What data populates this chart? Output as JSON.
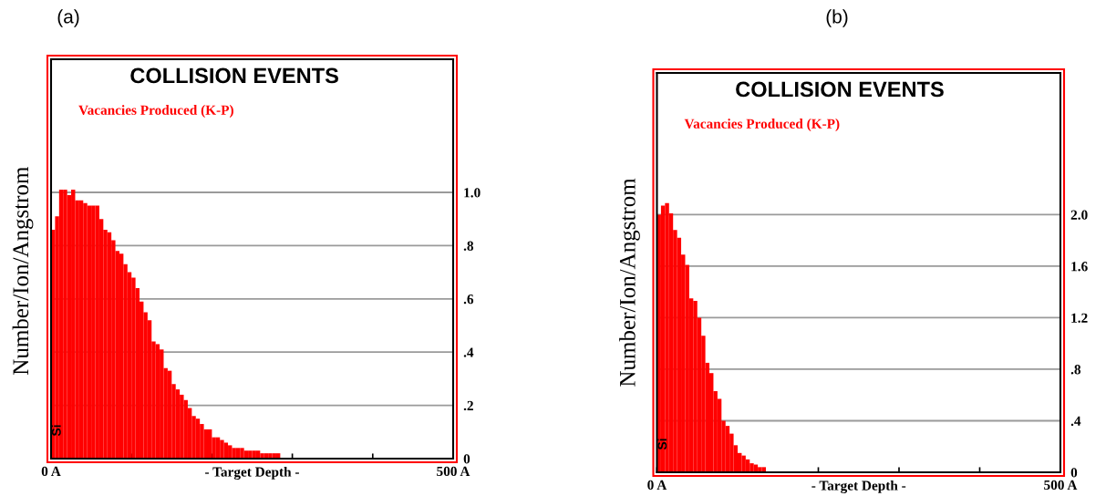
{
  "chart_data": [
    {
      "type": "histogram",
      "title": "COLLISION EVENTS",
      "xlabel": "- Target Depth -",
      "ylabel": "Number/Ion/Angstrom",
      "annotations": [
        "(a)",
        "Si"
      ],
      "bins": [
        0,
        5,
        10,
        15,
        20,
        25,
        30,
        35,
        40,
        45,
        50,
        55,
        60,
        65,
        70,
        75,
        80,
        85,
        90,
        95,
        100,
        105,
        110,
        115,
        120,
        125,
        130,
        135,
        140,
        145,
        150,
        155,
        160,
        165,
        170,
        175,
        180,
        185,
        190,
        195,
        200,
        205,
        210,
        215,
        220,
        225,
        230,
        235,
        240,
        245,
        250,
        255,
        260,
        265,
        270,
        275,
        280,
        285
      ],
      "series": [
        {
          "name": "Vacancies Produced (K-P)",
          "color": "#ff0000",
          "values": [
            0.86,
            0.91,
            1.01,
            1.01,
            0.99,
            1.01,
            0.97,
            0.97,
            0.96,
            0.95,
            0.95,
            0.95,
            0.9,
            0.86,
            0.85,
            0.82,
            0.78,
            0.77,
            0.73,
            0.7,
            0.68,
            0.64,
            0.59,
            0.55,
            0.52,
            0.44,
            0.43,
            0.41,
            0.34,
            0.33,
            0.28,
            0.26,
            0.24,
            0.22,
            0.19,
            0.16,
            0.15,
            0.13,
            0.11,
            0.11,
            0.08,
            0.08,
            0.07,
            0.06,
            0.05,
            0.04,
            0.04,
            0.04,
            0.03,
            0.03,
            0.03,
            0.03,
            0.02,
            0.02,
            0.02,
            0.02,
            0.02
          ]
        }
      ],
      "xlim": [
        0,
        500
      ],
      "xticks": [
        {
          "value": 0,
          "label": "0 A"
        },
        {
          "value": 100,
          "label": null
        },
        {
          "value": 200,
          "label": null
        },
        {
          "value": 300,
          "label": null
        },
        {
          "value": 400,
          "label": null
        },
        {
          "value": 500,
          "label": "500 A"
        }
      ],
      "ylim": [
        0,
        1.5
      ],
      "yticks": [
        0,
        {
          "value": 0.2,
          "label": ".2"
        },
        {
          "value": 0.4,
          "label": ".4"
        },
        {
          "value": 0.6,
          "label": ".6"
        },
        {
          "value": 0.8,
          "label": ".8"
        },
        {
          "value": 1,
          "label": "1.0"
        }
      ],
      "grid": "y",
      "legend": "top left"
    },
    {
      "type": "histogram",
      "title": "COLLISION EVENTS",
      "xlabel": "- Target Depth -",
      "ylabel": "Number/Ion/Angstrom",
      "annotations": [
        "(b)",
        "Si"
      ],
      "bins": [
        0,
        5,
        10,
        15,
        20,
        25,
        30,
        35,
        40,
        45,
        50,
        55,
        60,
        65,
        70,
        75,
        80,
        85,
        90,
        95,
        100,
        105,
        110,
        115,
        120,
        125,
        130,
        135
      ],
      "series": [
        {
          "name": "Vacancies Produced (K-P)",
          "color": "#ff0000",
          "values": [
            2.0,
            2.07,
            2.09,
            2.01,
            1.88,
            1.82,
            1.69,
            1.61,
            1.35,
            1.33,
            1.2,
            1.06,
            0.85,
            0.77,
            0.63,
            0.57,
            0.4,
            0.36,
            0.3,
            0.21,
            0.15,
            0.13,
            0.1,
            0.07,
            0.06,
            0.04,
            0.04
          ]
        }
      ],
      "xlim": [
        0,
        500
      ],
      "xticks": [
        {
          "value": 0,
          "label": "0 A"
        },
        {
          "value": 100,
          "label": null
        },
        {
          "value": 200,
          "label": null
        },
        {
          "value": 300,
          "label": null
        },
        {
          "value": 400,
          "label": null
        },
        {
          "value": 500,
          "label": "500 A"
        }
      ],
      "ylim": [
        0,
        3.1
      ],
      "yticks": [
        0,
        {
          "value": 0.4,
          "label": ".4"
        },
        {
          "value": 0.8,
          "label": ".8"
        },
        1.2,
        1.6,
        {
          "value": 2,
          "label": "2.0"
        }
      ],
      "grid": "y",
      "legend": "top left"
    }
  ]
}
